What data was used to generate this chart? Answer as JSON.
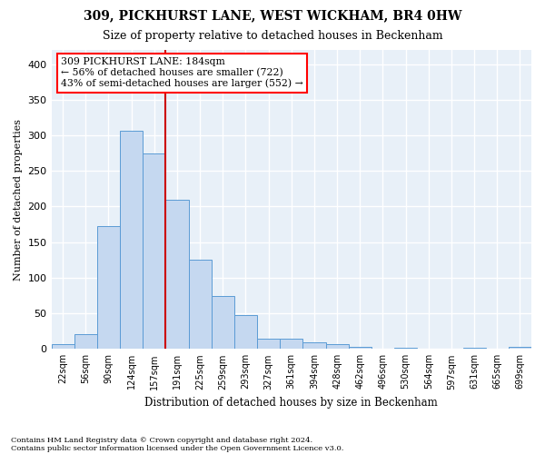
{
  "title1": "309, PICKHURST LANE, WEST WICKHAM, BR4 0HW",
  "title2": "Size of property relative to detached houses in Beckenham",
  "xlabel": "Distribution of detached houses by size in Beckenham",
  "ylabel": "Number of detached properties",
  "footnote1": "Contains HM Land Registry data © Crown copyright and database right 2024.",
  "footnote2": "Contains public sector information licensed under the Open Government Licence v3.0.",
  "bar_labels": [
    "22sqm",
    "56sqm",
    "90sqm",
    "124sqm",
    "157sqm",
    "191sqm",
    "225sqm",
    "259sqm",
    "293sqm",
    "327sqm",
    "361sqm",
    "394sqm",
    "428sqm",
    "462sqm",
    "496sqm",
    "530sqm",
    "564sqm",
    "597sqm",
    "631sqm",
    "665sqm",
    "699sqm"
  ],
  "bar_values": [
    7,
    21,
    172,
    307,
    275,
    210,
    125,
    74,
    48,
    15,
    15,
    9,
    7,
    3,
    1,
    2,
    1,
    0,
    2,
    0,
    3
  ],
  "bar_color": "#c5d8f0",
  "bar_edge_color": "#5b9bd5",
  "background_color": "#e8f0f8",
  "grid_color": "#ffffff",
  "vline_color": "#cc0000",
  "vline_x_index": 5,
  "annotation_line1": "309 PICKHURST LANE: 184sqm",
  "annotation_line2": "← 56% of detached houses are smaller (722)",
  "annotation_line3": "43% of semi-detached houses are larger (552) →",
  "ylim_max": 420,
  "yticks": [
    0,
    50,
    100,
    150,
    200,
    250,
    300,
    350,
    400
  ]
}
